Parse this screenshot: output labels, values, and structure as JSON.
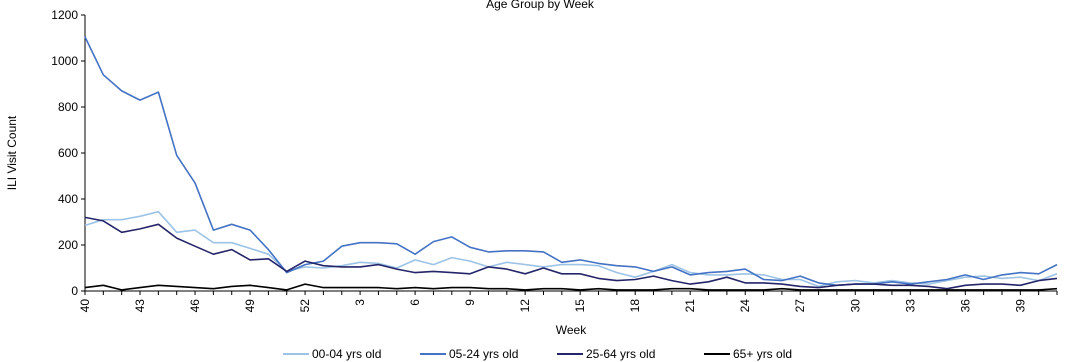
{
  "chart_data": {
    "type": "line",
    "title": "",
    "partial_title": "Age Group by Week",
    "xlabel": "Week",
    "ylabel": "ILI Visit Count",
    "ylim": [
      0,
      1200
    ],
    "yticks": [
      0,
      200,
      400,
      600,
      800,
      1000,
      1200
    ],
    "grid": false,
    "legend_position": "bottom",
    "x_tick_labels": [
      "40",
      "43",
      "46",
      "49",
      "52",
      "3",
      "6",
      "9",
      "12",
      "15",
      "18",
      "21",
      "24",
      "27",
      "30",
      "33",
      "36",
      "39"
    ],
    "x": [
      "40",
      "41",
      "42",
      "43",
      "44",
      "45",
      "46",
      "47",
      "48",
      "49",
      "50",
      "51",
      "52",
      "1",
      "2",
      "3",
      "4",
      "5",
      "6",
      "7",
      "8",
      "9",
      "10",
      "11",
      "12",
      "13",
      "14",
      "15",
      "16",
      "17",
      "18",
      "19",
      "20",
      "21",
      "22",
      "23",
      "24",
      "25",
      "26",
      "27",
      "28",
      "29",
      "30",
      "31",
      "32",
      "33",
      "34",
      "35",
      "36",
      "37",
      "38",
      "39",
      "40",
      "41"
    ],
    "series": [
      {
        "name": "00-04 yrs old",
        "color": "#9dc3e6",
        "values": [
          285,
          310,
          310,
          325,
          345,
          255,
          265,
          210,
          210,
          185,
          160,
          85,
          105,
          100,
          110,
          125,
          120,
          100,
          135,
          115,
          145,
          130,
          105,
          125,
          115,
          105,
          115,
          115,
          110,
          80,
          60,
          85,
          115,
          80,
          70,
          70,
          75,
          70,
          50,
          50,
          20,
          40,
          45,
          35,
          45,
          35,
          30,
          45,
          60,
          65,
          55,
          60,
          45,
          75
        ]
      },
      {
        "name": "05-24 yrs old",
        "color": "#4472c4",
        "values": [
          1105,
          940,
          870,
          830,
          865,
          590,
          470,
          265,
          290,
          265,
          180,
          80,
          115,
          130,
          195,
          210,
          210,
          205,
          160,
          215,
          235,
          190,
          170,
          175,
          175,
          170,
          125,
          135,
          120,
          110,
          105,
          85,
          105,
          70,
          80,
          85,
          95,
          50,
          45,
          65,
          35,
          25,
          30,
          30,
          40,
          30,
          40,
          50,
          70,
          50,
          70,
          80,
          75,
          115
        ]
      },
      {
        "name": "25-64 yrs old",
        "color": "#252669",
        "values": [
          320,
          305,
          255,
          270,
          290,
          230,
          195,
          160,
          180,
          135,
          140,
          85,
          130,
          110,
          105,
          105,
          115,
          95,
          80,
          85,
          80,
          75,
          105,
          95,
          75,
          100,
          75,
          75,
          55,
          45,
          50,
          65,
          45,
          30,
          40,
          60,
          35,
          35,
          30,
          20,
          15,
          25,
          30,
          30,
          25,
          25,
          20,
          10,
          25,
          30,
          30,
          25,
          45,
          55
        ]
      },
      {
        "name": "65+ yrs old",
        "color": "#000000",
        "values": [
          15,
          25,
          5,
          15,
          25,
          20,
          15,
          10,
          20,
          25,
          15,
          5,
          30,
          15,
          15,
          15,
          15,
          10,
          15,
          10,
          15,
          15,
          10,
          10,
          5,
          10,
          10,
          5,
          10,
          5,
          5,
          5,
          10,
          10,
          5,
          5,
          5,
          5,
          10,
          5,
          5,
          5,
          5,
          5,
          5,
          5,
          5,
          5,
          5,
          5,
          5,
          5,
          5,
          10
        ]
      }
    ]
  }
}
